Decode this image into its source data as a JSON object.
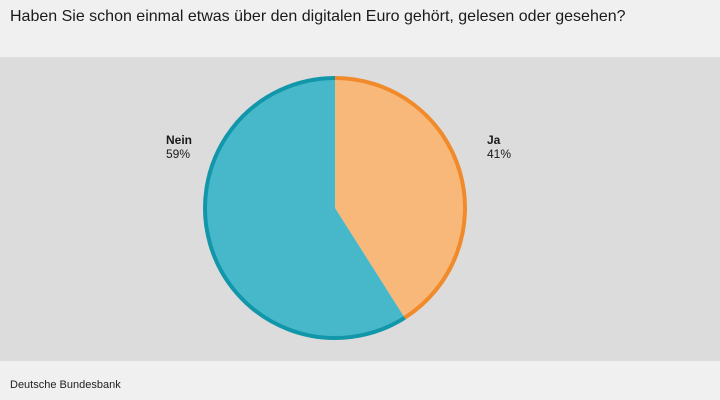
{
  "title": "Haben Sie schon einmal etwas über den digitalen Euro gehört, gelesen oder gesehen?",
  "source": "Deutsche Bundesbank",
  "colors": {
    "ja_fill": "#f8b87a",
    "ja_stroke": "#f08a2a",
    "nein_fill": "#47b8c9",
    "nein_stroke": "#1297aa",
    "panel_bg": "#dcdcdc",
    "page_bg": "#f0f0f0"
  },
  "chart_data": {
    "type": "pie",
    "title": "Haben Sie schon einmal etwas über den digitalen Euro gehört, gelesen oder gesehen?",
    "slices": [
      {
        "label": "Ja",
        "value": 41,
        "value_label": "41%"
      },
      {
        "label": "Nein",
        "value": 59,
        "value_label": "59%"
      }
    ],
    "legend": "none"
  }
}
